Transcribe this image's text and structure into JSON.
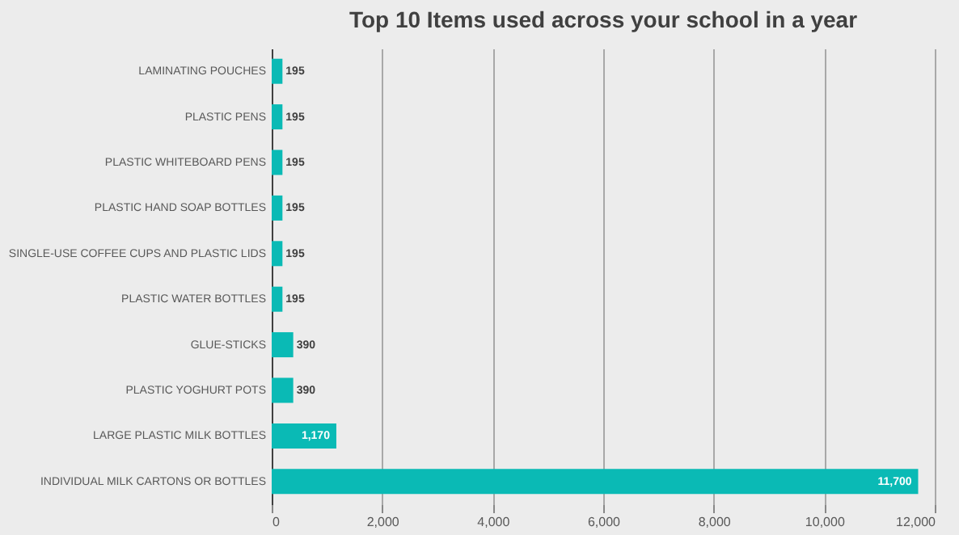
{
  "chart_data": {
    "type": "bar",
    "orientation": "horizontal",
    "title": "Top 10 Items used across your school in a year",
    "categories": [
      "LAMINATING POUCHES",
      "PLASTIC PENS",
      "PLASTIC WHITEBOARD PENS",
      "PLASTIC HAND SOAP BOTTLES",
      "SINGLE-USE COFFEE CUPS AND PLASTIC LIDS",
      "PLASTIC WATER BOTTLES",
      "GLUE-STICKS",
      "PLASTIC YOGHURT POTS",
      "LARGE PLASTIC MILK BOTTLES",
      "INDIVIDUAL MILK CARTONS OR BOTTLES"
    ],
    "values": [
      195,
      195,
      195,
      195,
      195,
      195,
      390,
      390,
      1170,
      11700
    ],
    "value_labels": [
      "195",
      "195",
      "195",
      "195",
      "195",
      "195",
      "390",
      "390",
      "1,170",
      "11,700"
    ],
    "color": "#0abab5",
    "xlim": [
      0,
      12000
    ],
    "xticks": [
      0,
      {
        "value": 2000,
        "label": "2,000"
      },
      {
        "value": 4000,
        "label": "4,000"
      },
      {
        "value": 6000,
        "label": "6,000"
      },
      {
        "value": 8000,
        "label": "8,000"
      },
      {
        "value": 10000,
        "label": "10,000"
      },
      {
        "value": 12000,
        "label": "12,000"
      }
    ],
    "grid": "x"
  }
}
